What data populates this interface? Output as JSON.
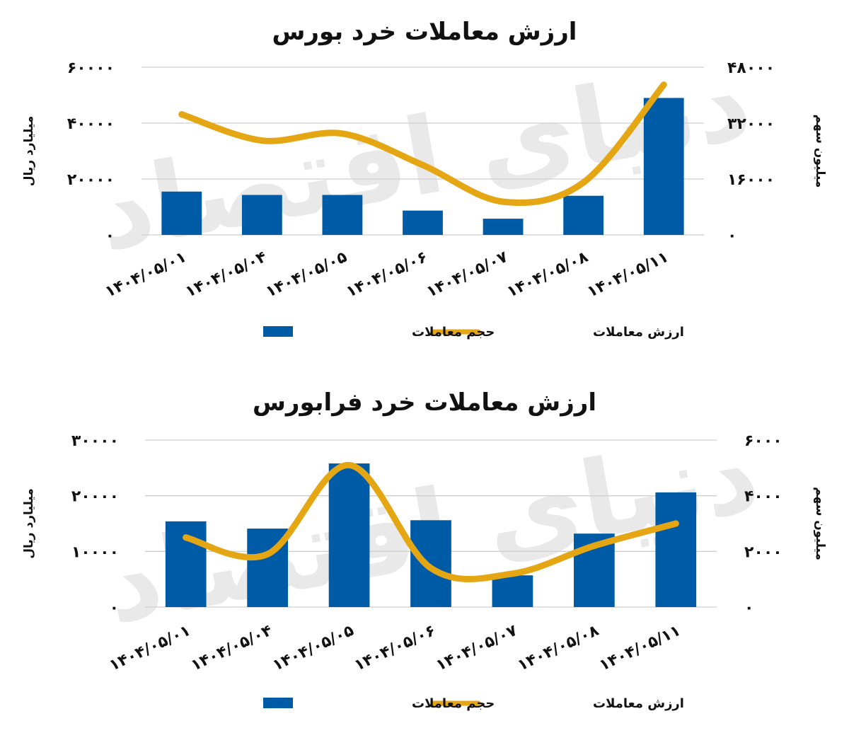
{
  "chart_data": [
    {
      "type": "bar",
      "title": "ارزش معاملات خرد بورس",
      "categories": [
        "۱۴۰۴/۰۵/۰۱",
        "۱۴۰۴/۰۵/۰۴",
        "۱۴۰۴/۰۵/۰۵",
        "۱۴۰۴/۰۵/۰۶",
        "۱۴۰۴/۰۵/۰۷",
        "۱۴۰۴/۰۵/۰۸",
        "۱۴۰۴/۰۵/۱۱"
      ],
      "ylabel_left": "میلیارد ریال",
      "ylabel_right": "میلیون سهم",
      "ylim_left": [
        0,
        60000
      ],
      "ylim_right": [
        0,
        48000
      ],
      "yticks_left": [
        "۰",
        "۲۰۰۰۰",
        "۴۰۰۰۰",
        "۶۰۰۰۰"
      ],
      "yticks_right": [
        "۰",
        "۱۶۰۰۰",
        "۳۲۰۰۰",
        "۴۸۰۰۰"
      ],
      "grid": true,
      "legend_position": "bottom",
      "series": [
        {
          "name": "حجم معاملات",
          "type": "bar",
          "axis": "left",
          "color": "#005ba6",
          "values": [
            15500,
            14300,
            14300,
            8700,
            5800,
            14000,
            49000
          ]
        },
        {
          "name": "ارزش معاملات",
          "type": "line",
          "axis": "right",
          "color": "#e5a614",
          "values": [
            34500,
            27000,
            29000,
            20000,
            9500,
            15000,
            43000
          ]
        }
      ]
    },
    {
      "type": "bar",
      "title": "ارزش معاملات خرد فرابورس",
      "categories": [
        "۱۴۰۴/۰۵/۰۱",
        "۱۴۰۴/۰۵/۰۴",
        "۱۴۰۴/۰۵/۰۵",
        "۱۴۰۴/۰۵/۰۶",
        "۱۴۰۴/۰۵/۰۷",
        "۱۴۰۴/۰۵/۰۸",
        "۱۴۰۴/۰۵/۱۱"
      ],
      "ylabel_left": "میلیارد ریال",
      "ylabel_right": "میلیون سهم",
      "ylim_left": [
        0,
        30000
      ],
      "ylim_right": [
        0,
        6000
      ],
      "yticks_left": [
        "۰",
        "۱۰۰۰۰",
        "۲۰۰۰۰",
        "۳۰۰۰۰"
      ],
      "yticks_right": [
        "۰",
        "۲۰۰۰",
        "۴۰۰۰",
        "۶۰۰۰"
      ],
      "grid": true,
      "legend_position": "bottom",
      "series": [
        {
          "name": "حجم معاملات",
          "type": "bar",
          "axis": "left",
          "color": "#005ba6",
          "values": [
            15400,
            14100,
            25800,
            15600,
            5700,
            13200,
            20600
          ]
        },
        {
          "name": "ارزش معاملات",
          "type": "line",
          "axis": "right",
          "color": "#e5a614",
          "values": [
            2500,
            1900,
            5100,
            1400,
            1200,
            2200,
            3000
          ]
        }
      ]
    }
  ]
}
